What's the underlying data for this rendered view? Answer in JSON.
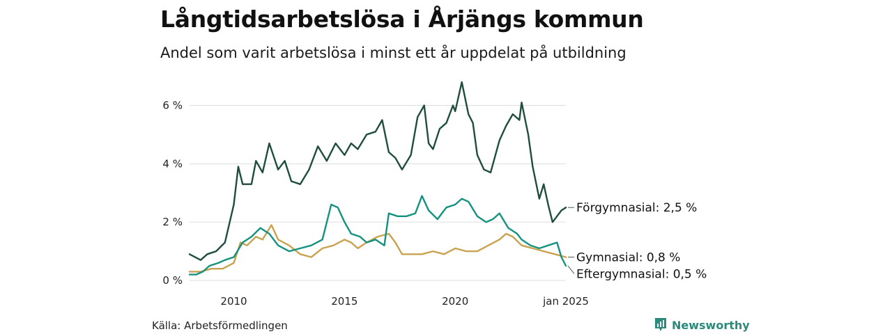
{
  "title": "Långtidsarbetslösa i Årjängs kommun",
  "subtitle": "Andel som varit arbetslösa i minst ett år uppdelat på utbildning",
  "source": "Källa: Arbetsförmedlingen",
  "brand": {
    "name": "Newsworthy",
    "icon": "newsworthy-logo-icon"
  },
  "colors": {
    "forgymnasial": "#1e4d3f",
    "gymnasial": "#c9a24f",
    "eftergymnasial": "#14927f",
    "grid": "#dddddd"
  },
  "chart_data": {
    "type": "line",
    "title": "Långtidsarbetslösa i Årjängs kommun",
    "subtitle": "Andel som varit arbetslösa i minst ett år uppdelat på utbildning",
    "xlabel": "",
    "ylabel": "",
    "x_range": [
      2008.0,
      2025.0
    ],
    "ylim": [
      0,
      6.8
    ],
    "yticks": [
      0,
      2,
      4,
      6
    ],
    "ytick_labels": [
      "0 %",
      "2 %",
      "4 %",
      "6 %"
    ],
    "xticks": [
      2010,
      2015,
      2020,
      2025.0
    ],
    "xtick_labels": [
      "2010",
      "2015",
      "2020",
      "jan 2025"
    ],
    "grid": true,
    "series": [
      {
        "name": "Förgymnasial",
        "label": "Förgymnasial: 2,5 %",
        "color_key": "forgymnasial",
        "x": [
          2008.0,
          2008.5,
          2008.8,
          2009.2,
          2009.6,
          2010.0,
          2010.2,
          2010.4,
          2010.8,
          2011.0,
          2011.3,
          2011.6,
          2012.0,
          2012.3,
          2012.6,
          2013.0,
          2013.4,
          2013.8,
          2014.2,
          2014.6,
          2015.0,
          2015.3,
          2015.6,
          2016.0,
          2016.4,
          2016.7,
          2017.0,
          2017.3,
          2017.6,
          2018.0,
          2018.3,
          2018.6,
          2018.8,
          2019.0,
          2019.3,
          2019.6,
          2019.9,
          2020.0,
          2020.3,
          2020.6,
          2020.8,
          2021.0,
          2021.3,
          2021.6,
          2022.0,
          2022.3,
          2022.6,
          2022.9,
          2023.0,
          2023.3,
          2023.5,
          2023.8,
          2024.0,
          2024.2,
          2024.4,
          2024.6,
          2024.8,
          2025.0
        ],
        "y": [
          0.9,
          0.7,
          0.9,
          1.0,
          1.3,
          2.6,
          3.9,
          3.3,
          3.3,
          4.1,
          3.7,
          4.7,
          3.8,
          4.1,
          3.4,
          3.3,
          3.8,
          4.6,
          4.1,
          4.7,
          4.3,
          4.7,
          4.5,
          5.0,
          5.1,
          5.5,
          4.4,
          4.2,
          3.8,
          4.3,
          5.6,
          6.0,
          4.7,
          4.5,
          5.2,
          5.4,
          6.0,
          5.8,
          6.8,
          5.7,
          5.4,
          4.3,
          3.8,
          3.7,
          4.8,
          5.3,
          5.7,
          5.5,
          6.1,
          5.0,
          3.9,
          2.8,
          3.3,
          2.6,
          2.0,
          2.2,
          2.4,
          2.5
        ]
      },
      {
        "name": "Gymnasial",
        "label": "Gymnasial: 0,8 %",
        "color_key": "gymnasial",
        "x": [
          2008.0,
          2008.5,
          2009.0,
          2009.5,
          2010.0,
          2010.3,
          2010.6,
          2011.0,
          2011.3,
          2011.7,
          2012.0,
          2012.5,
          2013.0,
          2013.5,
          2014.0,
          2014.5,
          2015.0,
          2015.3,
          2015.6,
          2016.0,
          2016.5,
          2017.0,
          2017.3,
          2017.6,
          2018.0,
          2018.5,
          2019.0,
          2019.5,
          2020.0,
          2020.5,
          2021.0,
          2021.5,
          2022.0,
          2022.3,
          2022.6,
          2023.0,
          2023.5,
          2024.0,
          2024.5,
          2025.0
        ],
        "y": [
          0.3,
          0.3,
          0.4,
          0.4,
          0.6,
          1.3,
          1.2,
          1.5,
          1.4,
          1.9,
          1.4,
          1.2,
          0.9,
          0.8,
          1.1,
          1.2,
          1.4,
          1.3,
          1.1,
          1.3,
          1.5,
          1.6,
          1.3,
          0.9,
          0.9,
          0.9,
          1.0,
          0.9,
          1.1,
          1.0,
          1.0,
          1.2,
          1.4,
          1.6,
          1.5,
          1.2,
          1.1,
          1.0,
          0.9,
          0.8
        ]
      },
      {
        "name": "Eftergymnasial",
        "label": "Eftergymnasial: 0,5 %",
        "color_key": "eftergymnasial",
        "x": [
          2008.0,
          2008.3,
          2008.6,
          2008.9,
          2009.3,
          2009.6,
          2010.0,
          2010.4,
          2010.8,
          2011.2,
          2011.6,
          2012.0,
          2012.5,
          2013.0,
          2013.5,
          2014.0,
          2014.4,
          2014.7,
          2015.0,
          2015.3,
          2015.7,
          2016.0,
          2016.4,
          2016.8,
          2017.0,
          2017.4,
          2017.8,
          2018.2,
          2018.5,
          2018.8,
          2019.2,
          2019.6,
          2020.0,
          2020.3,
          2020.6,
          2021.0,
          2021.4,
          2021.7,
          2022.0,
          2022.4,
          2022.8,
          2023.0,
          2023.4,
          2023.8,
          2024.2,
          2024.6,
          2024.8,
          2025.0
        ],
        "y": [
          0.2,
          0.2,
          0.3,
          0.5,
          0.6,
          0.7,
          0.8,
          1.3,
          1.5,
          1.8,
          1.6,
          1.2,
          1.0,
          1.1,
          1.2,
          1.4,
          2.6,
          2.5,
          2.0,
          1.6,
          1.5,
          1.3,
          1.4,
          1.2,
          2.3,
          2.2,
          2.2,
          2.3,
          2.9,
          2.4,
          2.1,
          2.5,
          2.6,
          2.8,
          2.7,
          2.2,
          2.0,
          2.1,
          2.3,
          1.8,
          1.6,
          1.4,
          1.2,
          1.1,
          1.2,
          1.3,
          0.8,
          0.5
        ]
      }
    ]
  }
}
